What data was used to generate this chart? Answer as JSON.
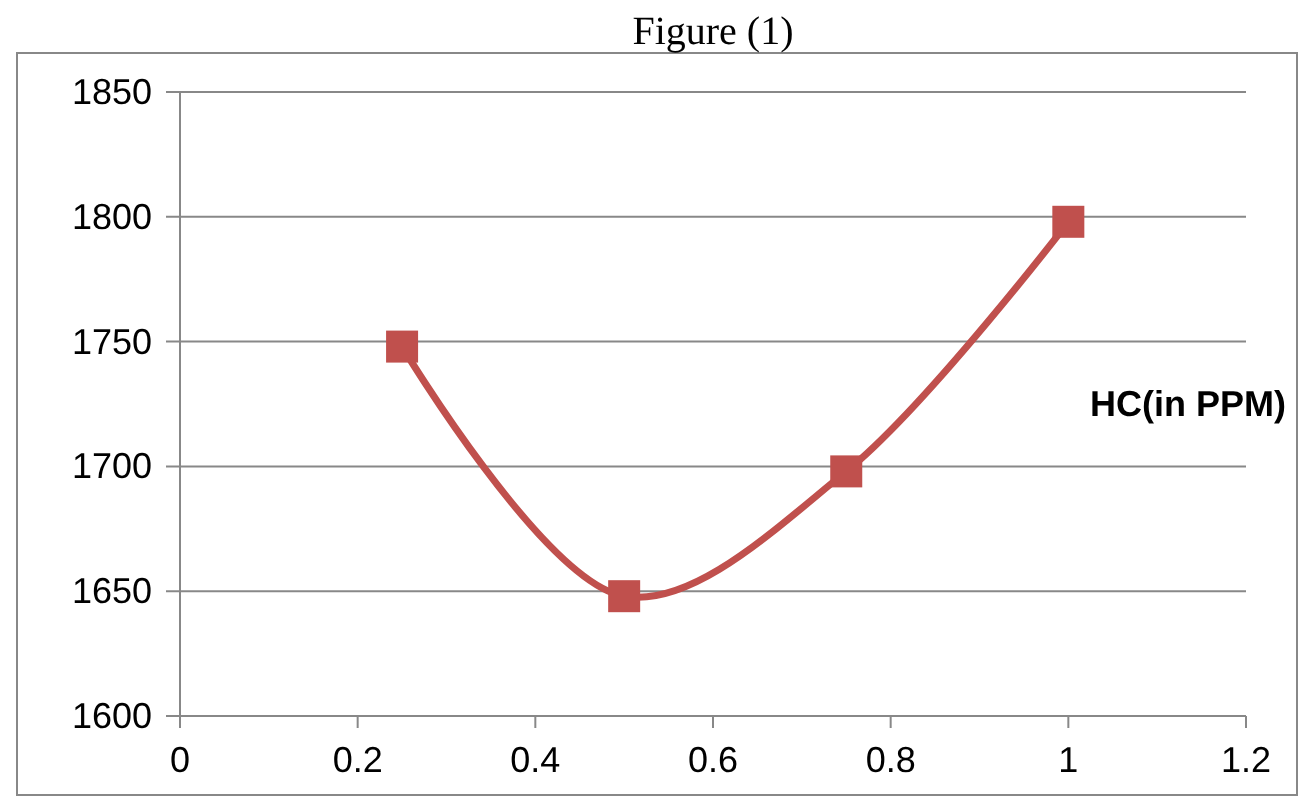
{
  "chart_data": {
    "type": "line",
    "title": "Figure (1)",
    "x": [
      0.25,
      0.5,
      0.75,
      1
    ],
    "series": [
      {
        "name": "HC(in PPM)",
        "color": "#c0504d",
        "values": [
          1748,
          1648,
          1698,
          1798
        ]
      }
    ],
    "xlim": [
      0,
      1.2
    ],
    "xticks": [
      0,
      0.2,
      0.4,
      0.6,
      0.8,
      1,
      1.2
    ],
    "ylim": [
      1600,
      1850
    ],
    "yticks": [
      1600,
      1650,
      1700,
      1750,
      1800,
      1850
    ],
    "grid": "y",
    "legend": "right",
    "marker": "square",
    "line_style": "solid"
  }
}
